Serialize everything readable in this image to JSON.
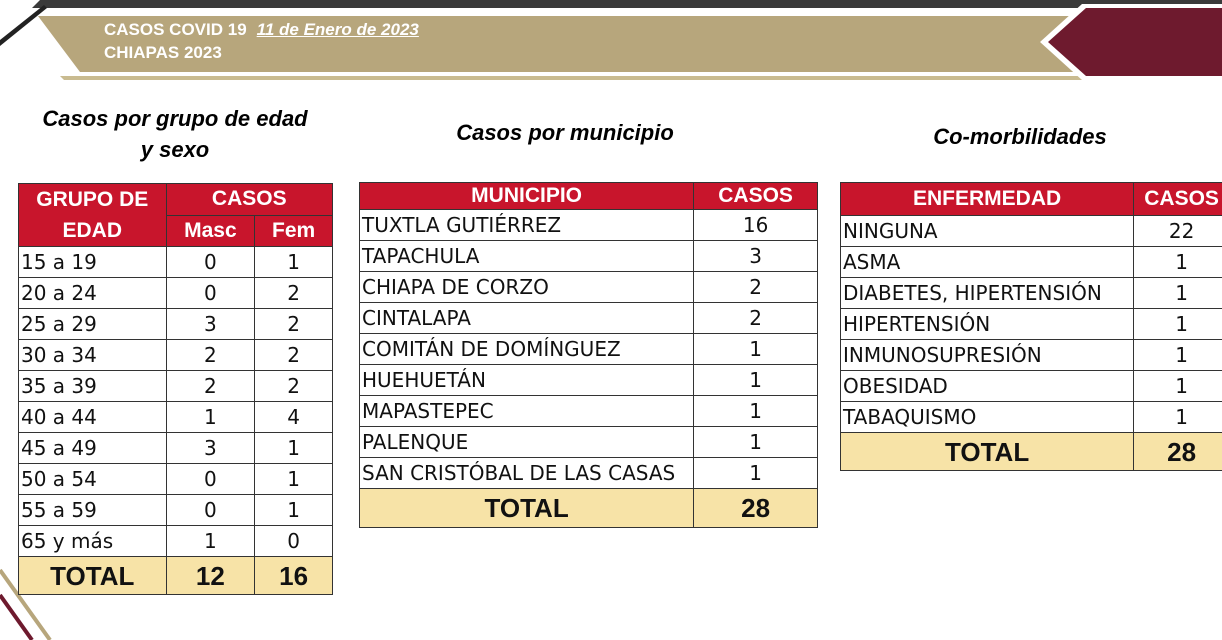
{
  "header": {
    "title": "CASOS COVID 19",
    "date": "11 de Enero de 2023",
    "subtitle": "CHIAPAS 2023"
  },
  "colors": {
    "header_gold": "#b7a67c",
    "header_maroon": "#6e1a2e",
    "table_header_red": "#c8152c",
    "total_yellow": "#f7e3a7"
  },
  "age": {
    "title": "Casos por grupo de edad y sexo",
    "header_group": "GRUPO DE EDAD",
    "header_cases": "CASOS",
    "header_masc": "Masc",
    "header_fem": "Fem",
    "rows": [
      {
        "group": "15 a 19",
        "masc": "0",
        "fem": "1"
      },
      {
        "group": "20 a 24",
        "masc": "0",
        "fem": "2"
      },
      {
        "group": "25 a 29",
        "masc": "3",
        "fem": "2"
      },
      {
        "group": "30 a 34",
        "masc": "2",
        "fem": "2"
      },
      {
        "group": "35 a 39",
        "masc": "2",
        "fem": "2"
      },
      {
        "group": "40 a 44",
        "masc": "1",
        "fem": "4"
      },
      {
        "group": "45 a 49",
        "masc": "3",
        "fem": "1"
      },
      {
        "group": "50 a 54",
        "masc": "0",
        "fem": "1"
      },
      {
        "group": "55 a 59",
        "masc": "0",
        "fem": "1"
      },
      {
        "group": "65 y más",
        "masc": "1",
        "fem": "0"
      }
    ],
    "total_label": "TOTAL",
    "total_masc": "12",
    "total_fem": "16"
  },
  "municipio": {
    "title": "Casos por municipio",
    "header_name": "MUNICIPIO",
    "header_cases": "CASOS",
    "rows": [
      {
        "name": "TUXTLA GUTIÉRREZ",
        "cases": "16"
      },
      {
        "name": "TAPACHULA",
        "cases": "3"
      },
      {
        "name": "CHIAPA DE CORZO",
        "cases": "2"
      },
      {
        "name": "CINTALAPA",
        "cases": "2"
      },
      {
        "name": "COMITÁN DE DOMÍNGUEZ",
        "cases": "1"
      },
      {
        "name": "HUEHUETÁN",
        "cases": "1"
      },
      {
        "name": "MAPASTEPEC",
        "cases": "1"
      },
      {
        "name": "PALENQUE",
        "cases": "1"
      },
      {
        "name": "SAN CRISTÓBAL DE LAS CASAS",
        "cases": "1"
      }
    ],
    "total_label": "TOTAL",
    "total": "28"
  },
  "comorb": {
    "title": "Co-morbilidades",
    "header_name": "ENFERMEDAD",
    "header_cases": "CASOS",
    "rows": [
      {
        "name": "NINGUNA",
        "cases": "22"
      },
      {
        "name": "ASMA",
        "cases": "1"
      },
      {
        "name": "DIABETES, HIPERTENSIÓN",
        "cases": "1"
      },
      {
        "name": "HIPERTENSIÓN",
        "cases": "1"
      },
      {
        "name": "INMUNOSUPRESIÓN",
        "cases": "1"
      },
      {
        "name": "OBESIDAD",
        "cases": "1"
      },
      {
        "name": "TABAQUISMO",
        "cases": "1"
      }
    ],
    "total_label": "TOTAL",
    "total": "28"
  }
}
